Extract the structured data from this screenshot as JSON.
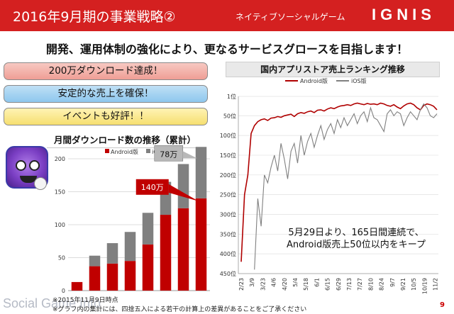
{
  "header": {
    "title": "2016年9月期の事業戦略②",
    "subtitle": "ネイティブソーシャルゲーム",
    "logo": "IGNIS"
  },
  "lead": "開発、運用体制の強化により、更なるサービスグロースを目指します！",
  "pills": [
    {
      "label": "200万ダウンロード達成！",
      "color": "#f2aaa2"
    },
    {
      "label": "安定的な売上を確保！",
      "color": "#9dcdf0"
    },
    {
      "label": "イベントも好評！！",
      "color": "#f8e58a"
    }
  ],
  "left_title": "月間ダウンロード数の推移（累計）",
  "right_title": "国内アプリストア売上ランキング推移",
  "footnotes": {
    "line1": "※2015年11月9日時点",
    "line2": "※グラフ内の集計には、四捨五入による若干の計算上の差異があることをご了承ください",
    "watermark": "Social Game Info"
  },
  "page_number": "9",
  "chart_data": [
    {
      "type": "bar",
      "stacked": true,
      "title": "月間ダウンロード数の推移（累計）",
      "y_ticks": [
        "0",
        "50",
        "100",
        "150",
        "200"
      ],
      "ylim": [
        0,
        200
      ],
      "series": [
        {
          "name": "Android版",
          "color": "#c00000",
          "values": [
            13,
            37,
            41,
            45,
            70,
            115,
            125,
            140
          ]
        },
        {
          "name": "iOS版",
          "color": "#808080",
          "values": [
            0,
            16,
            31,
            44,
            48,
            50,
            67,
            78
          ]
        }
      ],
      "callouts": [
        {
          "label": "78万",
          "series": "iOS版"
        },
        {
          "label": "140万",
          "series": "Android版"
        }
      ],
      "grid": true,
      "legend": "top"
    },
    {
      "type": "line",
      "title": "国内アプリストア売上ランキング推移",
      "y_inverted": true,
      "ylim": [
        1,
        450
      ],
      "y_ticks": [
        "1位",
        "50位",
        "100位",
        "150位",
        "200位",
        "250位",
        "300位",
        "350位",
        "400位",
        "450位"
      ],
      "x_ticks": [
        "2/23",
        "3/9",
        "3/23",
        "4/6",
        "4/20",
        "5/4",
        "5/18",
        "6/1",
        "6/15",
        "6/29",
        "7/13",
        "7/27",
        "8/10",
        "8/24",
        "9/7",
        "9/21",
        "10/5",
        "10/19",
        "11/2"
      ],
      "series": [
        {
          "name": "Android版",
          "color": "#b00000",
          "values": [
            420,
            250,
            200,
            95,
            75,
            65,
            60,
            58,
            62,
            56,
            55,
            52,
            54,
            50,
            48,
            46,
            52,
            45,
            42,
            44,
            40,
            38,
            42,
            36,
            35,
            38,
            33,
            30,
            32,
            28,
            25,
            24,
            22,
            24,
            20,
            18,
            20,
            22,
            19,
            21,
            20,
            22,
            18,
            20,
            24,
            26,
            22,
            28,
            32,
            25,
            20,
            18,
            22,
            30,
            35,
            24,
            20,
            22,
            26,
            35
          ]
        },
        {
          "name": "iOS版",
          "color": "#808080",
          "values": [
            null,
            null,
            null,
            null,
            440,
            260,
            330,
            200,
            220,
            180,
            150,
            190,
            120,
            160,
            210,
            140,
            120,
            170,
            100,
            150,
            115,
            95,
            130,
            100,
            75,
            110,
            85,
            70,
            95,
            60,
            80,
            55,
            75,
            60,
            45,
            70,
            50,
            40,
            65,
            30,
            55,
            60,
            75,
            90,
            45,
            35,
            50,
            40,
            45,
            75,
            55,
            40,
            50,
            60,
            35,
            20,
            30,
            50,
            55,
            45
          ]
        }
      ],
      "annotation": [
        "5月29日より、165日間連続で、",
        "Android版売上50位以内をキープ"
      ],
      "legend": "top",
      "grid": true
    }
  ]
}
